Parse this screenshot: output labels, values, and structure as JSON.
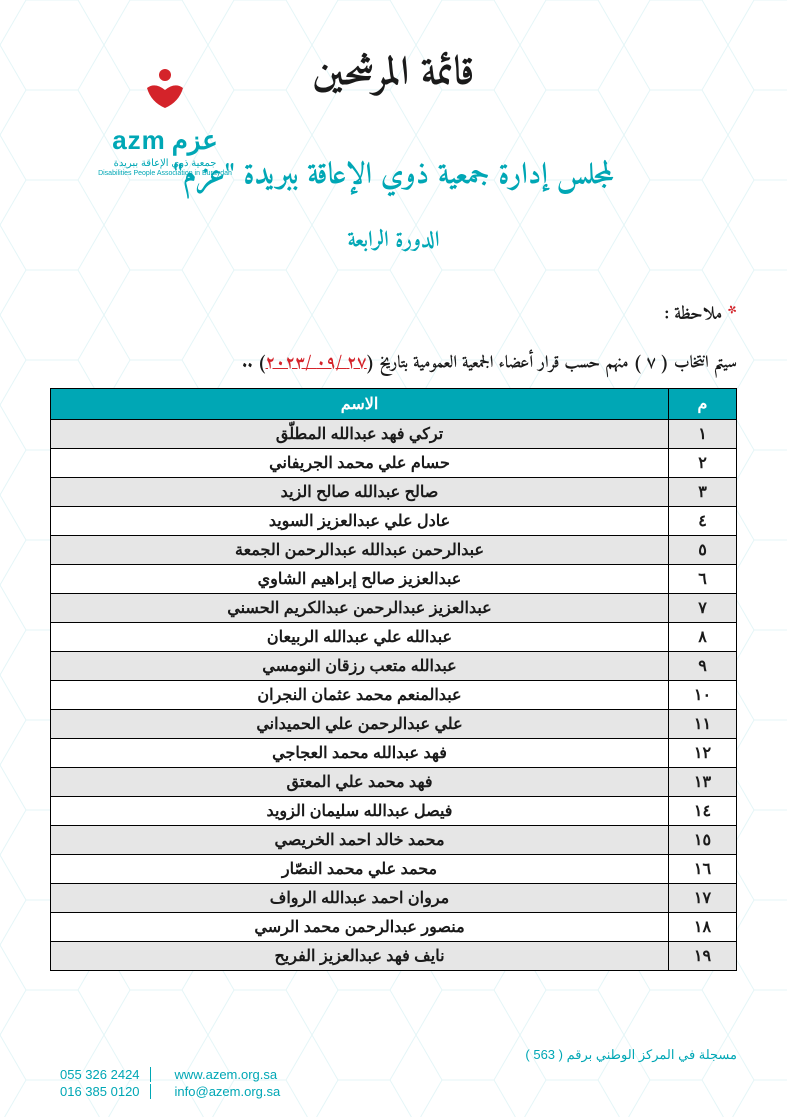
{
  "logo": {
    "brand_en": "azm",
    "brand_ar": "عزم",
    "sub_ar": "جمعية ذوي الإعاقة ببريدة",
    "sub_en": "Disabilities People Association in Buraydah",
    "icon_color": "#d4232a"
  },
  "colors": {
    "teal": "#00a7b5",
    "red": "#d4232a",
    "row_stripe": "#e6e6e6",
    "text": "#1a1a1a"
  },
  "titles": {
    "main": "قائمة المرشحين",
    "sub": "لمجلس إدارة جمعية ذوي الإعاقة ببريدة \"عزم\"",
    "session": "الدورة الرابعة"
  },
  "note": {
    "star": "*",
    "label": "ملاحظة :",
    "selection_pre": "سيتم انتخاب ( ٧ ) منهم حسب قرار أعضاء الجمعية العمومية بتاريخ (",
    "selection_date": "٢٧ /٠٩ /٢٠٢٣",
    "selection_post": ") .."
  },
  "table": {
    "headers": {
      "idx": "م",
      "name": "الاسم"
    },
    "rows": [
      {
        "n": "١",
        "name": "تركي فهد عبدالله المطلّق"
      },
      {
        "n": "٢",
        "name": "حسام علي محمد الجريفاني"
      },
      {
        "n": "٣",
        "name": "صالح عبدالله صالح الزيد"
      },
      {
        "n": "٤",
        "name": "عادل علي عبدالعزيز السويد"
      },
      {
        "n": "٥",
        "name": "عبدالرحمن عبدالله عبدالرحمن الجمعة"
      },
      {
        "n": "٦",
        "name": "عبدالعزيز صالح إبراهيم الشاوي"
      },
      {
        "n": "٧",
        "name": "عبدالعزيز عبدالرحمن عبدالكريم الحسني"
      },
      {
        "n": "٨",
        "name": "عبدالله علي عبدالله الربيعان"
      },
      {
        "n": "٩",
        "name": "عبدالله متعب رزقان النومسي"
      },
      {
        "n": "١٠",
        "name": "عبدالمنعم محمد عثمان النجران"
      },
      {
        "n": "١١",
        "name": "علي عبدالرحمن علي الحميداني"
      },
      {
        "n": "١٢",
        "name": "فهد عبدالله محمد العجاجي"
      },
      {
        "n": "١٣",
        "name": "فهد محمد علي المعتق"
      },
      {
        "n": "١٤",
        "name": "فيصل عبدالله سليمان الزويد"
      },
      {
        "n": "١٥",
        "name": "محمد خالد احمد الخريصي"
      },
      {
        "n": "١٦",
        "name": "محمد علي محمد النصّار"
      },
      {
        "n": "١٧",
        "name": "مروان  احمد عبدالله الرواف"
      },
      {
        "n": "١٨",
        "name": "منصور عبدالرحمن محمد الرسي"
      },
      {
        "n": "١٩",
        "name": "نايف فهد عبدالعزيز الفريح"
      }
    ]
  },
  "footer": {
    "registration": "مسجلة في المركز الوطني برقم ( 563 )",
    "phone1": "055 326 2424",
    "phone2": "016 385 0120",
    "web": "www.azem.org.sa",
    "email": "info@azem.org.sa"
  }
}
